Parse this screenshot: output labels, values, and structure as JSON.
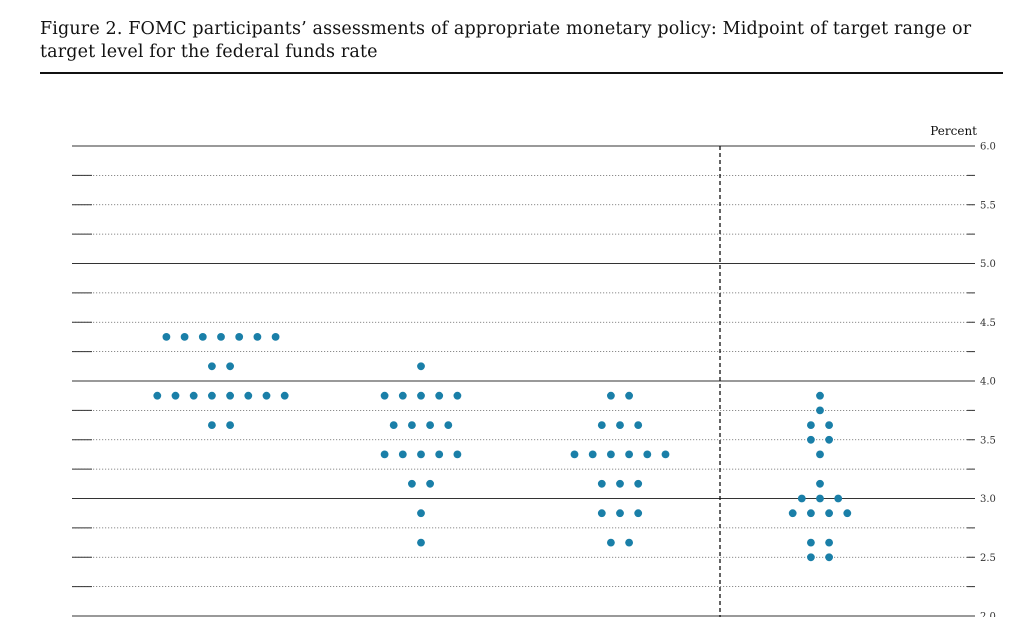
{
  "figure": {
    "title": "Figure 2.  FOMC participants’ assessments of appropriate monetary policy:  Midpoint of target range or target level for the federal funds rate"
  },
  "chart_data": {
    "type": "scatter",
    "title": "Figure 2.  FOMC participants’ assessments of appropriate monetary policy:  Midpoint of target range or target level for the federal funds rate",
    "xlabel": "",
    "ylabel": "Percent",
    "ylim": [
      2.0,
      6.0
    ],
    "y_ticks": [
      "6.0",
      "5.5",
      "5.0",
      "4.5",
      "4.0",
      "3.5",
      "3.0",
      "2.5",
      "2.0"
    ],
    "grid": "dotted every 0.25, solid every 1.0",
    "dot_color": "#1a7fa8",
    "categories": [
      "",
      "",
      "",
      ""
    ],
    "columns": [
      {
        "rows": [
          {
            "value": 4.375,
            "count": 7
          },
          {
            "value": 4.125,
            "count": 2
          },
          {
            "value": 3.875,
            "count": 8
          },
          {
            "value": 3.625,
            "count": 2
          }
        ]
      },
      {
        "rows": [
          {
            "value": 4.125,
            "count": 1
          },
          {
            "value": 3.875,
            "count": 5
          },
          {
            "value": 3.625,
            "count": 4
          },
          {
            "value": 3.375,
            "count": 5
          },
          {
            "value": 3.125,
            "count": 2
          },
          {
            "value": 2.875,
            "count": 1
          },
          {
            "value": 2.625,
            "count": 1
          }
        ]
      },
      {
        "rows": [
          {
            "value": 3.875,
            "count": 2
          },
          {
            "value": 3.625,
            "count": 3
          },
          {
            "value": 3.375,
            "count": 6
          },
          {
            "value": 3.125,
            "count": 3
          },
          {
            "value": 2.875,
            "count": 3
          },
          {
            "value": 2.625,
            "count": 2
          }
        ]
      },
      {
        "rows": [
          {
            "value": 3.875,
            "count": 1
          },
          {
            "value": 3.75,
            "count": 1
          },
          {
            "value": 3.625,
            "count": 2
          },
          {
            "value": 3.5,
            "count": 2
          },
          {
            "value": 3.375,
            "count": 1
          },
          {
            "value": 3.125,
            "count": 1
          },
          {
            "value": 3.0,
            "count": 3
          },
          {
            "value": 2.875,
            "count": 4
          },
          {
            "value": 2.625,
            "count": 2
          },
          {
            "value": 2.5,
            "count": 2
          }
        ]
      }
    ]
  }
}
